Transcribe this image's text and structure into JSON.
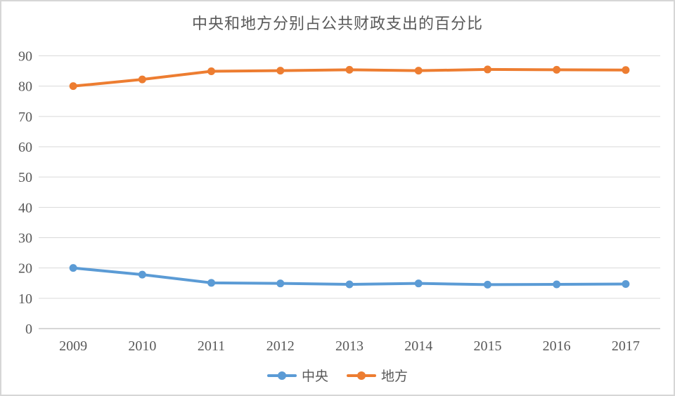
{
  "frame": {
    "background": "#ffffff",
    "border_color": "#d6d6d6"
  },
  "chart_data": {
    "type": "line",
    "title": "中央和地方分别占公共财政支出的百分比",
    "categories": [
      "2009",
      "2010",
      "2011",
      "2012",
      "2013",
      "2014",
      "2015",
      "2016",
      "2017"
    ],
    "series": [
      {
        "name": "中央",
        "color": "#5B9BD5",
        "values": [
          20.0,
          17.8,
          15.1,
          14.9,
          14.6,
          14.9,
          14.5,
          14.6,
          14.7
        ]
      },
      {
        "name": "地方",
        "color": "#ED7D31",
        "values": [
          80.0,
          82.2,
          84.9,
          85.1,
          85.4,
          85.1,
          85.5,
          85.4,
          85.3
        ]
      }
    ],
    "xlabel": "",
    "ylabel": "",
    "ylim": [
      0,
      90
    ],
    "yticks": [
      0,
      10,
      20,
      30,
      40,
      50,
      60,
      70,
      80,
      90
    ],
    "grid": true,
    "legend_position": "bottom",
    "text_color": "#595959",
    "grid_color": "#d9d9d9",
    "axis_line_color": "#c9c9c9"
  }
}
